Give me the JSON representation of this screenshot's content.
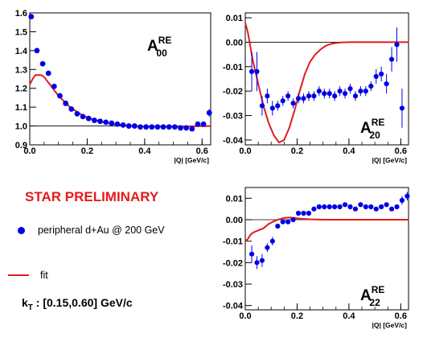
{
  "preliminary_label": "STAR PRELIMINARY",
  "legend": {
    "data_label": "peripheral d+Au @ 200 GeV",
    "fit_label": "fit"
  },
  "kt": {
    "k": "k",
    "sub": "T",
    "rest": " : [0.15,0.60] GeV/c"
  },
  "colors": {
    "data": "#0000e6",
    "fit": "#e41a1c",
    "axis": "#000000"
  },
  "chart_data": [
    {
      "type": "scatter",
      "id": "A00",
      "label_main": "A",
      "label_sup": "RE",
      "label_sub": "00",
      "xlabel": "|Q| [GeV/c]",
      "xlim": [
        0,
        0.63
      ],
      "ylim": [
        0.9,
        1.6
      ],
      "xticks": [
        0.0,
        0.2,
        0.4,
        0.6
      ],
      "xtick_labels": [
        "0.0",
        "0.2",
        "0.4",
        "0.6"
      ],
      "yticks": [
        0.9,
        1.0,
        1.1,
        1.2,
        1.3,
        1.4,
        1.5,
        1.6
      ],
      "ytick_labels": [
        "0.9",
        "1.0",
        "1.1",
        "1.2",
        "1.3",
        "1.4",
        "1.5",
        "1.6"
      ],
      "reference_line": 1.0,
      "series": [
        {
          "kind": "points",
          "x": [
            0.005,
            0.025,
            0.045,
            0.065,
            0.085,
            0.105,
            0.125,
            0.145,
            0.165,
            0.185,
            0.205,
            0.225,
            0.245,
            0.265,
            0.285,
            0.305,
            0.325,
            0.345,
            0.365,
            0.385,
            0.405,
            0.425,
            0.445,
            0.465,
            0.485,
            0.505,
            0.525,
            0.545,
            0.565,
            0.585,
            0.605,
            0.625
          ],
          "y": [
            1.58,
            1.4,
            1.33,
            1.28,
            1.21,
            1.16,
            1.12,
            1.09,
            1.065,
            1.05,
            1.04,
            1.03,
            1.025,
            1.02,
            1.015,
            1.01,
            1.005,
            1.0,
            1.0,
            0.995,
            0.995,
            0.995,
            0.995,
            0.995,
            0.995,
            0.995,
            0.99,
            0.99,
            0.985,
            1.01,
            1.01,
            1.07
          ],
          "err": [
            0.01,
            0.01,
            0.005,
            0.005,
            0.005,
            0.005,
            0.005,
            0.005,
            0.005,
            0.005,
            0.005,
            0.005,
            0.005,
            0.005,
            0.005,
            0.005,
            0.005,
            0.005,
            0.005,
            0.005,
            0.005,
            0.005,
            0.005,
            0.005,
            0.005,
            0.005,
            0.005,
            0.005,
            0.005,
            0.01,
            0.01,
            0.02
          ]
        },
        {
          "kind": "fit",
          "x": [
            0.0,
            0.01,
            0.02,
            0.03,
            0.04,
            0.05,
            0.06,
            0.07,
            0.08,
            0.09,
            0.1,
            0.12,
            0.14,
            0.16,
            0.18,
            0.2,
            0.22,
            0.25,
            0.28,
            0.32,
            0.36,
            0.4,
            0.45,
            0.5,
            0.55,
            0.6,
            0.63
          ],
          "y": [
            1.22,
            1.25,
            1.27,
            1.27,
            1.27,
            1.26,
            1.24,
            1.22,
            1.2,
            1.18,
            1.16,
            1.13,
            1.1,
            1.08,
            1.06,
            1.045,
            1.035,
            1.022,
            1.012,
            1.005,
            1.0,
            0.998,
            0.997,
            0.997,
            0.998,
            0.999,
            1.0
          ]
        }
      ]
    },
    {
      "type": "scatter",
      "id": "A20",
      "label_main": "A",
      "label_sup": "RE",
      "label_sub": "20",
      "xlabel": "|Q| [GeV/c]",
      "xlim": [
        0,
        0.63
      ],
      "ylim": [
        -0.042,
        0.012
      ],
      "xticks": [
        0.0,
        0.2,
        0.4,
        0.6
      ],
      "xtick_labels": [
        "0.0",
        "0.2",
        "0.4",
        "0.6"
      ],
      "yticks": [
        -0.04,
        -0.03,
        -0.02,
        -0.01,
        0.0,
        0.01
      ],
      "ytick_labels": [
        "-0.04",
        "-0.03",
        "-0.02",
        "-0.01",
        "0.00",
        "0.01"
      ],
      "reference_line": 0.0,
      "series": [
        {
          "kind": "points",
          "x": [
            0.025,
            0.045,
            0.065,
            0.085,
            0.105,
            0.125,
            0.145,
            0.165,
            0.185,
            0.205,
            0.225,
            0.245,
            0.265,
            0.285,
            0.305,
            0.325,
            0.345,
            0.365,
            0.385,
            0.405,
            0.425,
            0.445,
            0.465,
            0.485,
            0.505,
            0.525,
            0.545,
            0.565,
            0.585,
            0.605
          ],
          "y": [
            -0.012,
            -0.012,
            -0.026,
            -0.022,
            -0.027,
            -0.026,
            -0.024,
            -0.022,
            -0.025,
            -0.023,
            -0.023,
            -0.022,
            -0.022,
            -0.02,
            -0.021,
            -0.021,
            -0.022,
            -0.02,
            -0.021,
            -0.019,
            -0.022,
            -0.02,
            -0.02,
            -0.018,
            -0.014,
            -0.013,
            -0.017,
            -0.007,
            -0.001,
            -0.027
          ],
          "err": [
            0.008,
            0.008,
            0.004,
            0.003,
            0.003,
            0.002,
            0.002,
            0.002,
            0.002,
            0.002,
            0.002,
            0.002,
            0.002,
            0.002,
            0.002,
            0.002,
            0.002,
            0.002,
            0.002,
            0.002,
            0.002,
            0.002,
            0.002,
            0.002,
            0.003,
            0.003,
            0.004,
            0.005,
            0.007,
            0.008
          ]
        },
        {
          "kind": "fit",
          "x": [
            0.0,
            0.01,
            0.02,
            0.03,
            0.05,
            0.07,
            0.09,
            0.11,
            0.13,
            0.15,
            0.17,
            0.19,
            0.21,
            0.23,
            0.25,
            0.27,
            0.29,
            0.31,
            0.33,
            0.35,
            0.37,
            0.4,
            0.45,
            0.5,
            0.55,
            0.6,
            0.63
          ],
          "y": [
            0.008,
            0.004,
            -0.002,
            -0.008,
            -0.017,
            -0.026,
            -0.033,
            -0.038,
            -0.041,
            -0.04,
            -0.035,
            -0.028,
            -0.02,
            -0.013,
            -0.008,
            -0.005,
            -0.003,
            -0.0015,
            -0.0007,
            -0.0003,
            -0.0001,
            0.0,
            0.0,
            0.0,
            0.0,
            0.0,
            0.0
          ]
        }
      ]
    },
    {
      "type": "scatter",
      "id": "A22",
      "label_main": "A",
      "label_sup": "RE",
      "label_sub": "22",
      "xlabel": "|Q| [GeV/c]",
      "xlim": [
        0,
        0.63
      ],
      "ylim": [
        -0.042,
        0.015
      ],
      "xticks": [
        0.0,
        0.2,
        0.4,
        0.6
      ],
      "xtick_labels": [
        "0.0",
        "0.2",
        "0.4",
        "0.6"
      ],
      "yticks": [
        -0.04,
        -0.03,
        -0.02,
        -0.01,
        0.0,
        0.01
      ],
      "ytick_labels": [
        "-0.04",
        "-0.03",
        "-0.02",
        "-0.01",
        "0.00",
        "0.01"
      ],
      "reference_line": 0.0,
      "series": [
        {
          "kind": "points",
          "x": [
            0.025,
            0.045,
            0.065,
            0.085,
            0.105,
            0.125,
            0.145,
            0.165,
            0.185,
            0.205,
            0.225,
            0.245,
            0.265,
            0.285,
            0.305,
            0.325,
            0.345,
            0.365,
            0.385,
            0.405,
            0.425,
            0.445,
            0.465,
            0.485,
            0.505,
            0.525,
            0.545,
            0.565,
            0.585,
            0.605,
            0.625
          ],
          "y": [
            -0.016,
            -0.02,
            -0.019,
            -0.013,
            -0.01,
            -0.003,
            -0.001,
            -0.001,
            0.0,
            0.003,
            0.003,
            0.003,
            0.005,
            0.006,
            0.006,
            0.006,
            0.006,
            0.006,
            0.007,
            0.006,
            0.005,
            0.007,
            0.006,
            0.006,
            0.005,
            0.006,
            0.007,
            0.005,
            0.006,
            0.009,
            0.011
          ],
          "err": [
            0.004,
            0.003,
            0.003,
            0.002,
            0.002,
            0.001,
            0.001,
            0.001,
            0.001,
            0.001,
            0.001,
            0.001,
            0.001,
            0.001,
            0.001,
            0.001,
            0.001,
            0.001,
            0.001,
            0.001,
            0.001,
            0.001,
            0.001,
            0.001,
            0.001,
            0.001,
            0.001,
            0.001,
            0.001,
            0.002,
            0.002
          ]
        },
        {
          "kind": "fit",
          "x": [
            0.0,
            0.01,
            0.02,
            0.03,
            0.05,
            0.07,
            0.09,
            0.11,
            0.13,
            0.15,
            0.17,
            0.19,
            0.21,
            0.25,
            0.3,
            0.4,
            0.5,
            0.63
          ],
          "y": [
            -0.01,
            -0.009,
            -0.007,
            -0.006,
            -0.005,
            -0.004,
            -0.002,
            -0.0008,
            0.0002,
            0.0008,
            0.001,
            0.0008,
            0.0005,
            0.0002,
            0.0,
            0.0,
            0.0,
            0.0
          ]
        }
      ]
    }
  ]
}
